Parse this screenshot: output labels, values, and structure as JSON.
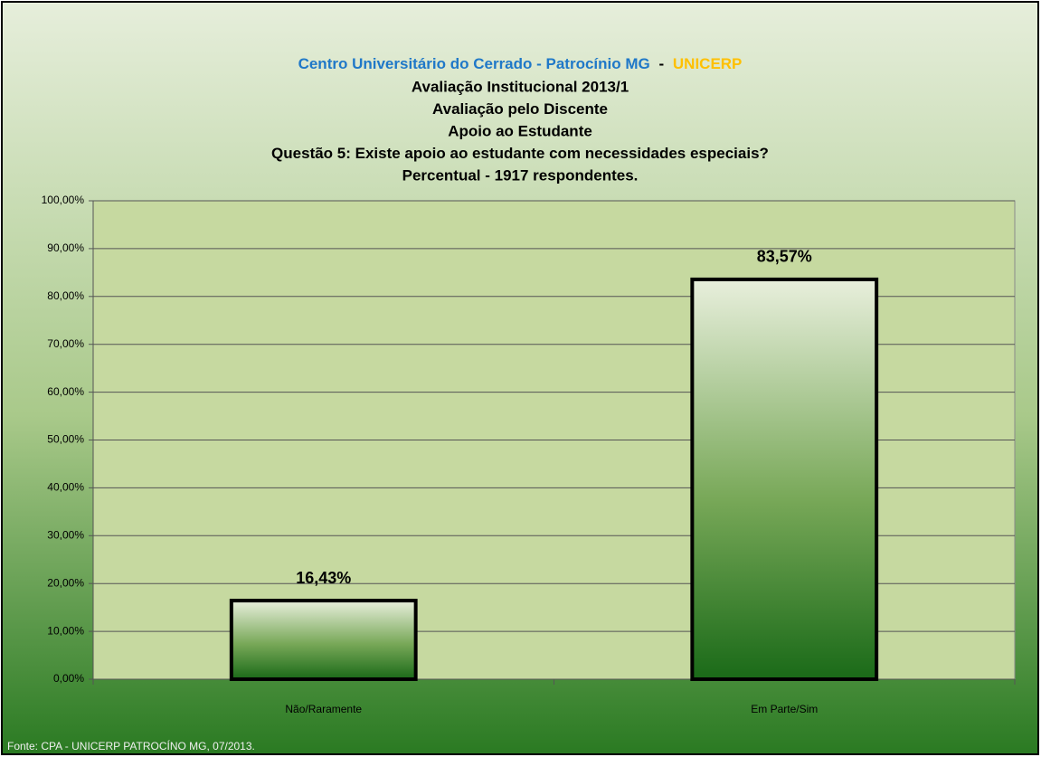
{
  "chart_data": {
    "type": "bar",
    "title": [
      {
        "text": "Centro Universitário do Cerrado - Patrocínio MG",
        "color": "#1f78c8"
      },
      {
        "text": "-",
        "color": "#000000"
      },
      {
        "text": "UNICERP",
        "color": "#ffc000"
      }
    ],
    "subtitle": [
      "Avaliação Institucional 2013/1",
      "Avaliação pelo Discente",
      "Apoio ao Estudante",
      "Questão 5: Existe apoio ao estudante com necessidades especiais?",
      "Percentual - 1917 respondentes."
    ],
    "categories": [
      "Não/Raramente",
      "Em Parte/Sim"
    ],
    "values": [
      16.43,
      83.57
    ],
    "value_labels": [
      "16,43%",
      "83,57%"
    ],
    "ylim": [
      0,
      100
    ],
    "yticks": [
      {
        "value": 0,
        "label": "0,00%"
      },
      {
        "value": 10,
        "label": "10,00%"
      },
      {
        "value": 20,
        "label": "20,00%"
      },
      {
        "value": 30,
        "label": "30,00%"
      },
      {
        "value": 40,
        "label": "40,00%"
      },
      {
        "value": 50,
        "label": "50,00%"
      },
      {
        "value": 60,
        "label": "60,00%"
      },
      {
        "value": 70,
        "label": "70,00%"
      },
      {
        "value": 80,
        "label": "80,00%"
      },
      {
        "value": 90,
        "label": "90,00%"
      },
      {
        "value": 100,
        "label": "100,00%"
      }
    ],
    "grid": true,
    "source": "Fonte: CPA - UNICERP PATROCÍNO MG, 07/2013."
  }
}
